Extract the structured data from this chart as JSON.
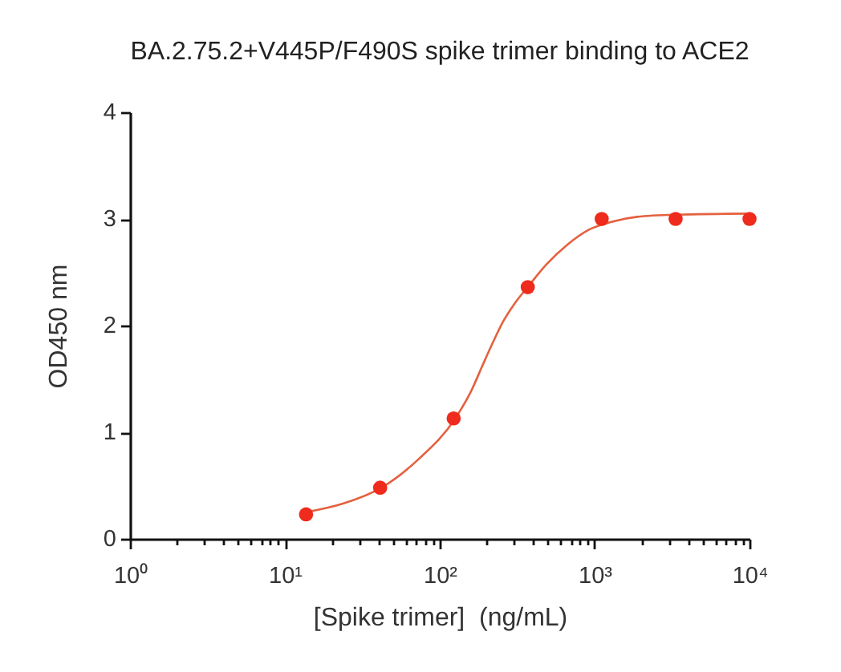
{
  "chart_data": {
    "type": "scatter",
    "title": "BA.2.75.2+V445P/F490S spike trimer binding to ACE2",
    "xlabel": "[Spike trimer]  (ng/mL)",
    "ylabel": "OD450 nm",
    "log": "x",
    "xlim": [
      1,
      10000
    ],
    "ylim": [
      0,
      4
    ],
    "xticks": [
      {
        "value": 1,
        "label": "10⁰"
      },
      {
        "value": 2,
        "label": null
      },
      {
        "value": 3,
        "label": null
      },
      {
        "value": 4,
        "label": null
      },
      {
        "value": 5,
        "label": null
      },
      {
        "value": 6,
        "label": null
      },
      {
        "value": 7,
        "label": null
      },
      {
        "value": 8,
        "label": null
      },
      {
        "value": 9,
        "label": null
      },
      {
        "value": 10,
        "label": "10¹"
      },
      {
        "value": 20,
        "label": null
      },
      {
        "value": 30,
        "label": null
      },
      {
        "value": 40,
        "label": null
      },
      {
        "value": 50,
        "label": null
      },
      {
        "value": 60,
        "label": null
      },
      {
        "value": 70,
        "label": null
      },
      {
        "value": 80,
        "label": null
      },
      {
        "value": 90,
        "label": null
      },
      {
        "value": 100,
        "label": "10²"
      },
      {
        "value": 200,
        "label": null
      },
      {
        "value": 300,
        "label": null
      },
      {
        "value": 400,
        "label": null
      },
      {
        "value": 500,
        "label": null
      },
      {
        "value": 600,
        "label": null
      },
      {
        "value": 700,
        "label": null
      },
      {
        "value": 800,
        "label": null
      },
      {
        "value": 900,
        "label": null
      },
      {
        "value": 1000,
        "label": "10³"
      },
      {
        "value": 2000,
        "label": null
      },
      {
        "value": 3000,
        "label": null
      },
      {
        "value": 4000,
        "label": null
      },
      {
        "value": 5000,
        "label": null
      },
      {
        "value": 6000,
        "label": null
      },
      {
        "value": 7000,
        "label": null
      },
      {
        "value": 8000,
        "label": null
      },
      {
        "value": 9000,
        "label": null
      },
      {
        "value": 10000,
        "label": "10⁴"
      }
    ],
    "yticks": [
      0,
      1,
      2,
      3,
      4
    ],
    "marker": "circle",
    "line_style": "solid",
    "series": [
      {
        "color": "#ee2b1c",
        "x": [
          13.7,
          41.2,
          123,
          370,
          1111,
          3333,
          10000
        ],
        "values": [
          0.23,
          0.48,
          1.13,
          2.36,
          3,
          3,
          3
        ]
      },
      {
        "type": "line",
        "marker": "none",
        "color": "#e4613f",
        "x": [
          13.7,
          23.7,
          42,
          72,
          126,
          160,
          188,
          220,
          257,
          302,
          374,
          486,
          668,
          920,
          1264,
          1883,
          3388,
          10000
        ],
        "values": [
          0.25,
          0.33,
          0.48,
          0.74,
          1.13,
          1.39,
          1.62,
          1.84,
          2.04,
          2.2,
          2.37,
          2.57,
          2.76,
          2.9,
          2.97,
          3.02,
          3.04,
          3.05
        ]
      }
    ]
  }
}
